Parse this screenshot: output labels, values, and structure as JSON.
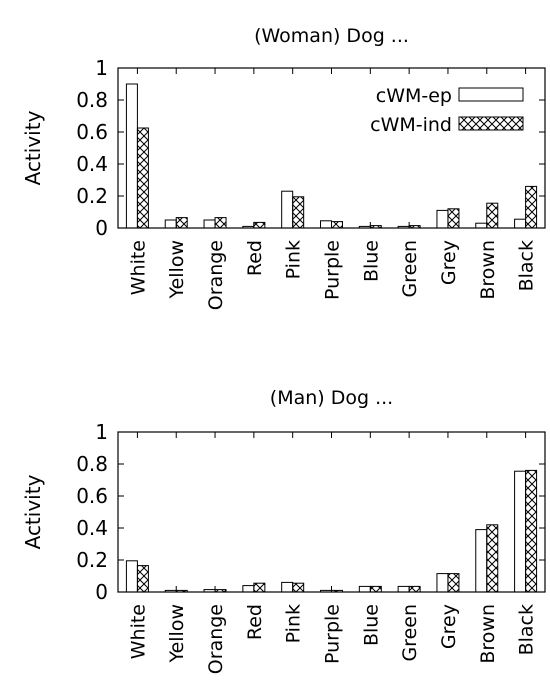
{
  "chart_data": [
    {
      "type": "bar",
      "title": "(Woman) Dog ...",
      "ylabel": "Activity",
      "ylim": [
        0,
        1
      ],
      "yticks": [
        "0",
        "0.2",
        "0.4",
        "0.6",
        "0.8",
        "1"
      ],
      "categories": [
        "White",
        "Yellow",
        "Orange",
        "Red",
        "Pink",
        "Purple",
        "Blue",
        "Green",
        "Grey",
        "Brown",
        "Black"
      ],
      "series": [
        {
          "name": "cWM-ep",
          "values": [
            0.9,
            0.05,
            0.05,
            0.01,
            0.23,
            0.045,
            0.01,
            0.01,
            0.11,
            0.03,
            0.055
          ]
        },
        {
          "name": "cWM-ind",
          "values": [
            0.625,
            0.065,
            0.065,
            0.035,
            0.195,
            0.04,
            0.015,
            0.015,
            0.12,
            0.155,
            0.26
          ]
        }
      ],
      "legend": "top-right",
      "grid": false
    },
    {
      "type": "bar",
      "title": "(Man) Dog ...",
      "ylabel": "Activity",
      "ylim": [
        0,
        1
      ],
      "yticks": [
        "0",
        "0.2",
        "0.4",
        "0.6",
        "0.8",
        "1"
      ],
      "categories": [
        "White",
        "Yellow",
        "Orange",
        "Red",
        "Pink",
        "Purple",
        "Blue",
        "Green",
        "Grey",
        "Brown",
        "Black"
      ],
      "series": [
        {
          "name": "cWM-ep",
          "values": [
            0.195,
            0.01,
            0.015,
            0.04,
            0.06,
            0.01,
            0.035,
            0.035,
            0.115,
            0.39,
            0.755
          ]
        },
        {
          "name": "cWM-ind",
          "values": [
            0.165,
            0.01,
            0.015,
            0.055,
            0.055,
            0.01,
            0.035,
            0.035,
            0.115,
            0.42,
            0.76
          ]
        }
      ],
      "grid": false
    }
  ]
}
